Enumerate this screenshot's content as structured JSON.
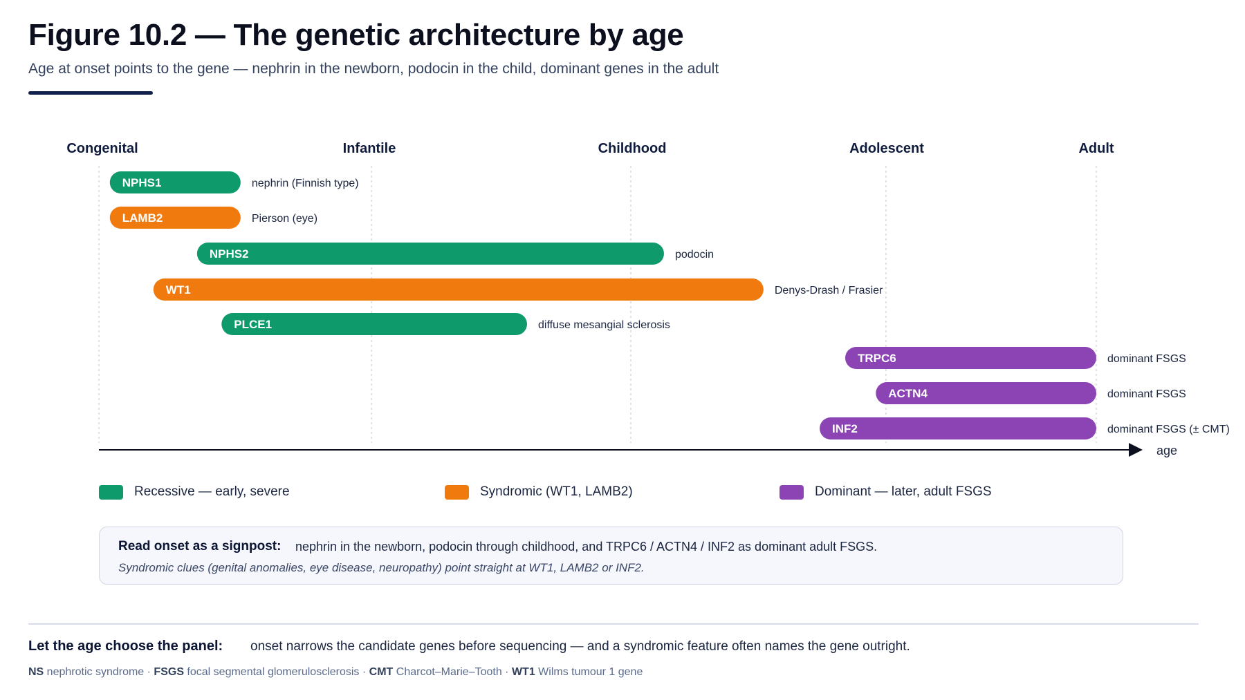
{
  "header": {
    "title": "Figure 10.2 — The genetic architecture by age",
    "subtitle": "Age at onset points to the gene — nephrin in the newborn, podocin in the child, dominant genes in the adult"
  },
  "chart_data": {
    "type": "timeline",
    "stages": [
      "Congenital",
      "Infantile",
      "Childhood",
      "Adolescent",
      "Adult"
    ],
    "stage_positions": [
      0,
      1,
      2,
      3,
      4
    ],
    "axis_label": "age",
    "bars": [
      {
        "gene": "NPHS1",
        "description": "nephrin (Finnish type)",
        "start": 0.04,
        "end": 0.52,
        "group": "recessive"
      },
      {
        "gene": "LAMB2",
        "description": "Pierson (eye)",
        "start": 0.04,
        "end": 0.52,
        "group": "syndromic"
      },
      {
        "gene": "NPHS2",
        "description": "podocin",
        "start": 0.36,
        "end": 2.13,
        "group": "recessive"
      },
      {
        "gene": "WT1",
        "description": "Denys-Drash / Frasier",
        "start": 0.2,
        "end": 2.52,
        "group": "syndromic"
      },
      {
        "gene": "PLCE1",
        "description": "diffuse mesangial sclerosis",
        "start": 0.45,
        "end": 1.6,
        "group": "recessive"
      },
      {
        "gene": "TRPC6",
        "description": "dominant FSGS",
        "start": 2.84,
        "end": 4.0,
        "group": "dominant"
      },
      {
        "gene": "ACTN4",
        "description": "dominant FSGS",
        "start": 2.96,
        "end": 4.0,
        "group": "dominant"
      },
      {
        "gene": "INF2",
        "description": "dominant FSGS (± CMT)",
        "start": 2.74,
        "end": 4.0,
        "group": "dominant"
      }
    ],
    "groups": {
      "recessive": {
        "label": "Recessive — early, severe",
        "color": "#0e9a6a"
      },
      "syndromic": {
        "label": "Syndromic (WT1, LAMB2)",
        "color": "#f07a0e"
      },
      "dominant": {
        "label": "Dominant — later, adult FSGS",
        "color": "#8c44b5"
      }
    },
    "grid": true
  },
  "note": {
    "heading": "Read onset as a signpost:",
    "body": "nephrin in the newborn, podocin through childhood, and TRPC6 / ACTN4 / INF2 as dominant adult FSGS.",
    "italic": "Syndromic clues (genital anomalies, eye disease, neuropathy) point straight at WT1, LAMB2 or INF2."
  },
  "footer": {
    "heading": "Let the age choose the panel:",
    "body": "onset narrows the candidate genes before sequencing — and a syndromic feature often names the gene outright.",
    "abbreviations": [
      {
        "abbr": "NS",
        "full": "nephrotic syndrome"
      },
      {
        "abbr": "FSGS",
        "full": "focal segmental glomerulosclerosis"
      },
      {
        "abbr": "CMT",
        "full": "Charcot–Marie–Tooth"
      },
      {
        "abbr": "WT1",
        "full": "Wilms tumour 1 gene"
      }
    ]
  }
}
